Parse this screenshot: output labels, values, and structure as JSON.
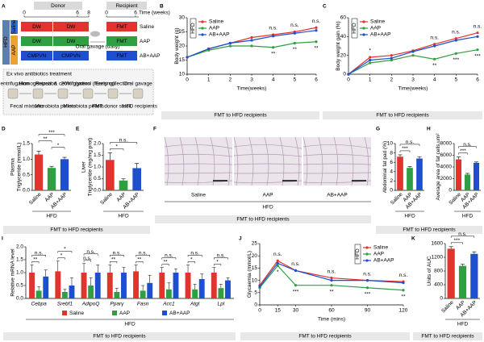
{
  "diagram": {
    "panel": "A",
    "donor": "Donor",
    "recipient": "Recipient",
    "donor_ticks": [
      "0",
      "6",
      "8"
    ],
    "time_label": "Time (weeks)",
    "recipient_ticks": [
      "0",
      "6"
    ],
    "diet": "HFD",
    "donor_groups": [
      "Saline",
      "AAP"
    ],
    "donor_rows": [
      [
        "DW",
        "DW"
      ],
      [
        "DW",
        "DW"
      ],
      [
        "CMPVN",
        "CMPVN"
      ]
    ],
    "gavage": "Oral gavage (daily)",
    "recipient_rows": [
      "FMT",
      "FMT",
      "FMT"
    ],
    "recipient_labels": [
      "Saline",
      "AAP",
      "AB+AAP"
    ],
    "process_title": "Ex vivo antibiotics treatment",
    "process_steps": [
      "Centrifugation",
      "Homogenization",
      "Repeat & centrifugation",
      "20% glycerol (freezing)",
      "Early collection",
      "Oral gavage"
    ],
    "process_items": [
      "Fecal mixtures",
      "Microbiota pellets",
      "Microbiota pellets",
      "FMT donor stock",
      "HFD recipients"
    ]
  },
  "images": {
    "panel": "F",
    "labels": [
      "Saline",
      "AAP",
      "AB+AAP"
    ],
    "group_label": "HFD",
    "footer": "FMT to HFD recipients"
  },
  "chart_data": [
    {
      "panel": "B",
      "type": "line",
      "ylabel": [
        "Body weight (g)"
      ],
      "xlabel": "Time(weeks)",
      "legend_title": "HFD",
      "legend": "upper left",
      "x": [
        0,
        1,
        2,
        3,
        4,
        5,
        6
      ],
      "xlim": [
        0,
        6
      ],
      "xticks": [
        0,
        1,
        2,
        3,
        4,
        5,
        6
      ],
      "ylim": [
        10,
        30
      ],
      "yticks": [
        10,
        15,
        20,
        25,
        30
      ],
      "series": [
        {
          "name": "Saline",
          "color": "#e0342c",
          "values": [
            16,
            19,
            21,
            23,
            24,
            25,
            26.5
          ]
        },
        {
          "name": "AAP",
          "color": "#2ea043",
          "values": [
            16,
            18.5,
            20,
            20,
            19.5,
            21,
            21.5
          ]
        },
        {
          "name": "AB+AAP",
          "color": "#1f4fd1",
          "values": [
            16,
            19,
            21,
            22,
            23.5,
            24.5,
            25.5
          ]
        }
      ],
      "annotations": [
        {
          "x": 4,
          "series": "AB+AAP",
          "text": "n.s."
        },
        {
          "x": 5,
          "series": "AB+AAP",
          "text": "n.s."
        },
        {
          "x": 6,
          "series": "AB+AAP",
          "text": "n.s."
        },
        {
          "x": 4,
          "series": "AAP",
          "text": "**"
        },
        {
          "x": 5,
          "series": "AAP",
          "text": "**"
        },
        {
          "x": 6,
          "series": "AAP",
          "text": "**"
        }
      ],
      "footer": "FMT to HFD recipients"
    },
    {
      "panel": "C",
      "type": "line",
      "ylabel": [
        "Body weight gain (%)"
      ],
      "xlabel": "Time(weeks)",
      "legend_title": "HFD",
      "legend": "upper left",
      "x": [
        0,
        1,
        2,
        3,
        4,
        5,
        6
      ],
      "xlim": [
        0,
        6
      ],
      "xticks": [
        0,
        1,
        2,
        3,
        4,
        5,
        6
      ],
      "ylim": [
        0,
        60
      ],
      "yticks": [
        0,
        20,
        40,
        60
      ],
      "series": [
        {
          "name": "Saline",
          "color": "#e0342c",
          "values": [
            0,
            18,
            20,
            25,
            32,
            38,
            44
          ]
        },
        {
          "name": "AAP",
          "color": "#2ea043",
          "values": [
            0,
            12,
            15,
            20,
            16,
            22,
            26
          ]
        },
        {
          "name": "AB+AAP",
          "color": "#1f4fd1",
          "values": [
            0,
            15,
            17,
            24,
            30,
            36,
            40
          ]
        }
      ],
      "annotations": [
        {
          "x": 1,
          "series": "Saline",
          "text": "*"
        },
        {
          "x": 4,
          "series": "AB+AAP",
          "text": "n.s."
        },
        {
          "x": 5,
          "series": "AB+AAP",
          "text": "n.s."
        },
        {
          "x": 6,
          "series": "AB+AAP",
          "text": "n.s."
        },
        {
          "x": 4,
          "series": "AAP",
          "text": "**"
        },
        {
          "x": 5,
          "series": "AAP",
          "text": "***"
        },
        {
          "x": 6,
          "series": "AAP",
          "text": "***"
        }
      ],
      "footer": "FMT to HFD recipients"
    },
    {
      "panel": "D",
      "type": "bar",
      "ylabel": [
        "Plasma",
        "Triglyceride (mmol/L)"
      ],
      "categories": [
        "Saline",
        "AAP",
        "AB+AAP"
      ],
      "values": [
        1.15,
        0.72,
        1.0
      ],
      "errors": [
        0.1,
        0.05,
        0.06
      ],
      "colors": [
        "#e0342c",
        "#2ea043",
        "#1f4fd1"
      ],
      "ylim": [
        0,
        1.5
      ],
      "yticks": [
        {
          "value": 0,
          "label": "0.0"
        },
        0.5,
        {
          "value": 1,
          "label": "1.0"
        },
        1.5
      ],
      "brackets": [
        {
          "from": "AAP",
          "to": "AB+AAP",
          "text": "*"
        },
        {
          "from": "Saline",
          "to": "AAP",
          "text": "**"
        },
        {
          "from": "Saline",
          "to": "AB+AAP",
          "text": "***"
        }
      ],
      "group_label": "HFD",
      "footer": "FMT to HFD recipients"
    },
    {
      "panel": "E",
      "type": "bar",
      "ylabel": [
        "Liver",
        "Triglyceride (mg/mg prot)"
      ],
      "categories": [
        "Saline",
        "AAP",
        "AB+AAP"
      ],
      "values": [
        1.3,
        0.42,
        0.95
      ],
      "errors": [
        0.3,
        0.08,
        0.2
      ],
      "colors": [
        "#e0342c",
        "#2ea043",
        "#1f4fd1"
      ],
      "ylim": [
        0,
        2
      ],
      "yticks": [
        {
          "value": 0,
          "label": "0.0"
        },
        0.5,
        {
          "value": 1,
          "label": "1.0"
        },
        1.5,
        {
          "value": 2,
          "label": "2.0"
        }
      ],
      "brackets": [
        {
          "from": "Saline",
          "to": "AAP",
          "text": "*"
        },
        {
          "from": "Saline",
          "to": "AB+AAP",
          "text": "n.s."
        }
      ],
      "group_label": "HFD"
    },
    {
      "panel": "G",
      "type": "bar",
      "ylabel": [
        "Abdominal fat pad (%)"
      ],
      "categories": [
        "Saline",
        "AAP",
        "AB+AAP"
      ],
      "values": [
        7.2,
        4.8,
        6.8
      ],
      "errors": [
        0.4,
        0.3,
        0.4
      ],
      "colors": [
        "#e0342c",
        "#2ea043",
        "#1f4fd1"
      ],
      "ylim": [
        0,
        10
      ],
      "yticks": [
        0,
        2,
        4,
        6,
        8,
        10
      ],
      "brackets": [
        {
          "from": "Saline",
          "to": "AAP",
          "text": "***"
        },
        {
          "from": "Saline",
          "to": "AB+AAP",
          "text": "n.s."
        }
      ],
      "group_label": "HFD",
      "footer": "FMT to HFD recipients"
    },
    {
      "panel": "H",
      "type": "bar",
      "ylabel": [
        "Average area of fat cells,um²"
      ],
      "categories": [
        "Saline",
        "AAP",
        "AB+AAP"
      ],
      "values": [
        5300,
        2700,
        4700
      ],
      "errors": [
        400,
        200,
        150
      ],
      "colors": [
        "#e0342c",
        "#2ea043",
        "#1f4fd1"
      ],
      "ylim": [
        0,
        8000
      ],
      "yticks": [
        0,
        2000,
        4000,
        6000,
        8000
      ],
      "brackets": [
        {
          "from": "Saline",
          "to": "AAP",
          "text": "***"
        },
        {
          "from": "Saline",
          "to": "AB+AAP",
          "text": "n.s."
        }
      ],
      "group_label": "HFD"
    },
    {
      "panel": "I",
      "type": "grouped_bar",
      "ylabel": [
        "Relative mRNA level"
      ],
      "categories": [
        "Cebpa",
        "Srebf1",
        "AdipoQ",
        "Pparγ",
        "Fasn",
        "Acc1",
        "Atgl",
        "Lpl"
      ],
      "ylim": [
        0,
        2
      ],
      "yticks": [
        {
          "value": 0,
          "label": "0.0"
        },
        0.5,
        {
          "value": 1,
          "label": "1.0"
        },
        1.5,
        {
          "value": 2,
          "label": "2.0"
        }
      ],
      "series": [
        {
          "name": "Saline",
          "color": "#e0342c",
          "values": [
            1.0,
            1.05,
            1.0,
            1.0,
            1.05,
            1.0,
            1.0,
            1.0
          ],
          "errors": [
            0.3,
            0.4,
            0.35,
            0.3,
            0.25,
            0.2,
            0.3,
            0.2
          ]
        },
        {
          "name": "AAP",
          "color": "#2ea043",
          "values": [
            0.3,
            0.25,
            0.5,
            0.25,
            0.3,
            0.35,
            0.35,
            0.4
          ],
          "errors": [
            0.15,
            0.1,
            0.3,
            0.15,
            0.2,
            0.25,
            0.2,
            0.15
          ]
        },
        {
          "name": "AB+AAP",
          "color": "#1f4fd1",
          "values": [
            0.85,
            0.5,
            1.0,
            1.0,
            0.6,
            1.0,
            0.75,
            0.7
          ],
          "errors": [
            0.25,
            0.3,
            0.3,
            0.2,
            0.3,
            0.15,
            0.2,
            0.1
          ]
        }
      ],
      "brackets": [
        {
          "category": "Cebpa",
          "from": "Saline",
          "to": "AAP",
          "text": "**"
        },
        {
          "category": "Cebpa",
          "from": "Saline",
          "to": "AB+AAP",
          "text": "n.s."
        },
        {
          "category": "Srebf1",
          "from": "Saline",
          "to": "AAP",
          "text": "*"
        },
        {
          "category": "Srebf1",
          "from": "Saline",
          "to": "AB+AAP",
          "text": "*"
        },
        {
          "category": "AdipoQ",
          "from": "Saline",
          "to": "AAP",
          "text": "n.s."
        },
        {
          "category": "AdipoQ",
          "from": "Saline",
          "to": "AB+AAP",
          "text": "n.s."
        },
        {
          "category": "Pparγ",
          "from": "Saline",
          "to": "AAP",
          "text": "**"
        },
        {
          "category": "Pparγ",
          "from": "Saline",
          "to": "AB+AAP",
          "text": "n.s."
        },
        {
          "category": "Fasn",
          "from": "Saline",
          "to": "AAP",
          "text": "**"
        },
        {
          "category": "Fasn",
          "from": "Saline",
          "to": "AB+AAP",
          "text": "n.s."
        },
        {
          "category": "Acc1",
          "from": "Saline",
          "to": "AAP",
          "text": "**"
        },
        {
          "category": "Acc1",
          "from": "Saline",
          "to": "AB+AAP",
          "text": "n.s."
        },
        {
          "category": "Atgl",
          "from": "Saline",
          "to": "AAP",
          "text": "*"
        },
        {
          "category": "Atgl",
          "from": "Saline",
          "to": "AB+AAP",
          "text": "n.s."
        },
        {
          "category": "Lpl",
          "from": "Saline",
          "to": "AAP",
          "text": "*"
        },
        {
          "category": "Lpl",
          "from": "Saline",
          "to": "AB+AAP",
          "text": "n.s."
        }
      ],
      "group_label": "HFD",
      "footer": "FMT to HFD recipients"
    },
    {
      "panel": "J",
      "type": "line",
      "ylabel": [
        "Glycaemia (mmol/L)"
      ],
      "xlabel": "Time (mins)",
      "legend_title": "HFD",
      "legend": "upper right",
      "x": [
        0,
        15,
        30,
        60,
        90,
        120
      ],
      "xlim": [
        0,
        120
      ],
      "xticks": [
        0,
        15,
        30,
        60,
        90,
        120
      ],
      "ylim": [
        0,
        25
      ],
      "yticks": [
        0,
        5,
        10,
        15,
        20,
        25
      ],
      "series": [
        {
          "name": "Saline",
          "color": "#e0342c",
          "values": [
            8,
            18,
            14,
            11,
            10,
            9.5
          ]
        },
        {
          "name": "AAP",
          "color": "#2ea043",
          "values": [
            7,
            16,
            8,
            8,
            7,
            6
          ]
        },
        {
          "name": "AB+AAP",
          "color": "#1f4fd1",
          "values": [
            7.5,
            17,
            14,
            10,
            10,
            9
          ]
        }
      ],
      "annotations": [
        {
          "x": 15,
          "series": "AB+AAP",
          "text": "n.s."
        },
        {
          "x": 30,
          "series": "AB+AAP",
          "text": "n.s."
        },
        {
          "x": 60,
          "series": "AB+AAP",
          "text": "n.s."
        },
        {
          "x": 90,
          "series": "AB+AAP",
          "text": "n.s."
        },
        {
          "x": 120,
          "series": "AB+AAP",
          "text": "n.s."
        },
        {
          "x": 15,
          "series": "AAP",
          "text": "*"
        },
        {
          "x": 30,
          "series": "AAP",
          "text": "***"
        },
        {
          "x": 60,
          "series": "AAP",
          "text": "**"
        },
        {
          "x": 90,
          "series": "AAP",
          "text": "***"
        },
        {
          "x": 120,
          "series": "AAP",
          "text": "**"
        }
      ],
      "footer": "FMT to HFD recipients"
    },
    {
      "panel": "K",
      "type": "bar",
      "ylabel": [
        "Units of AUC"
      ],
      "categories": [
        "Saline",
        "AAP",
        "AB+AAP"
      ],
      "values": [
        1450,
        950,
        1300
      ],
      "errors": [
        60,
        50,
        60
      ],
      "colors": [
        "#e0342c",
        "#2ea043",
        "#1f4fd1"
      ],
      "ylim": [
        0,
        1600
      ],
      "yticks": [
        0,
        400,
        800,
        1200,
        1600
      ],
      "brackets": [
        {
          "from": "Saline",
          "to": "AAP",
          "text": "***"
        },
        {
          "from": "Saline",
          "to": "AB+AAP",
          "text": "n.s."
        }
      ],
      "group_label": "HFD",
      "footer": "FMT to HFD recipients"
    }
  ]
}
